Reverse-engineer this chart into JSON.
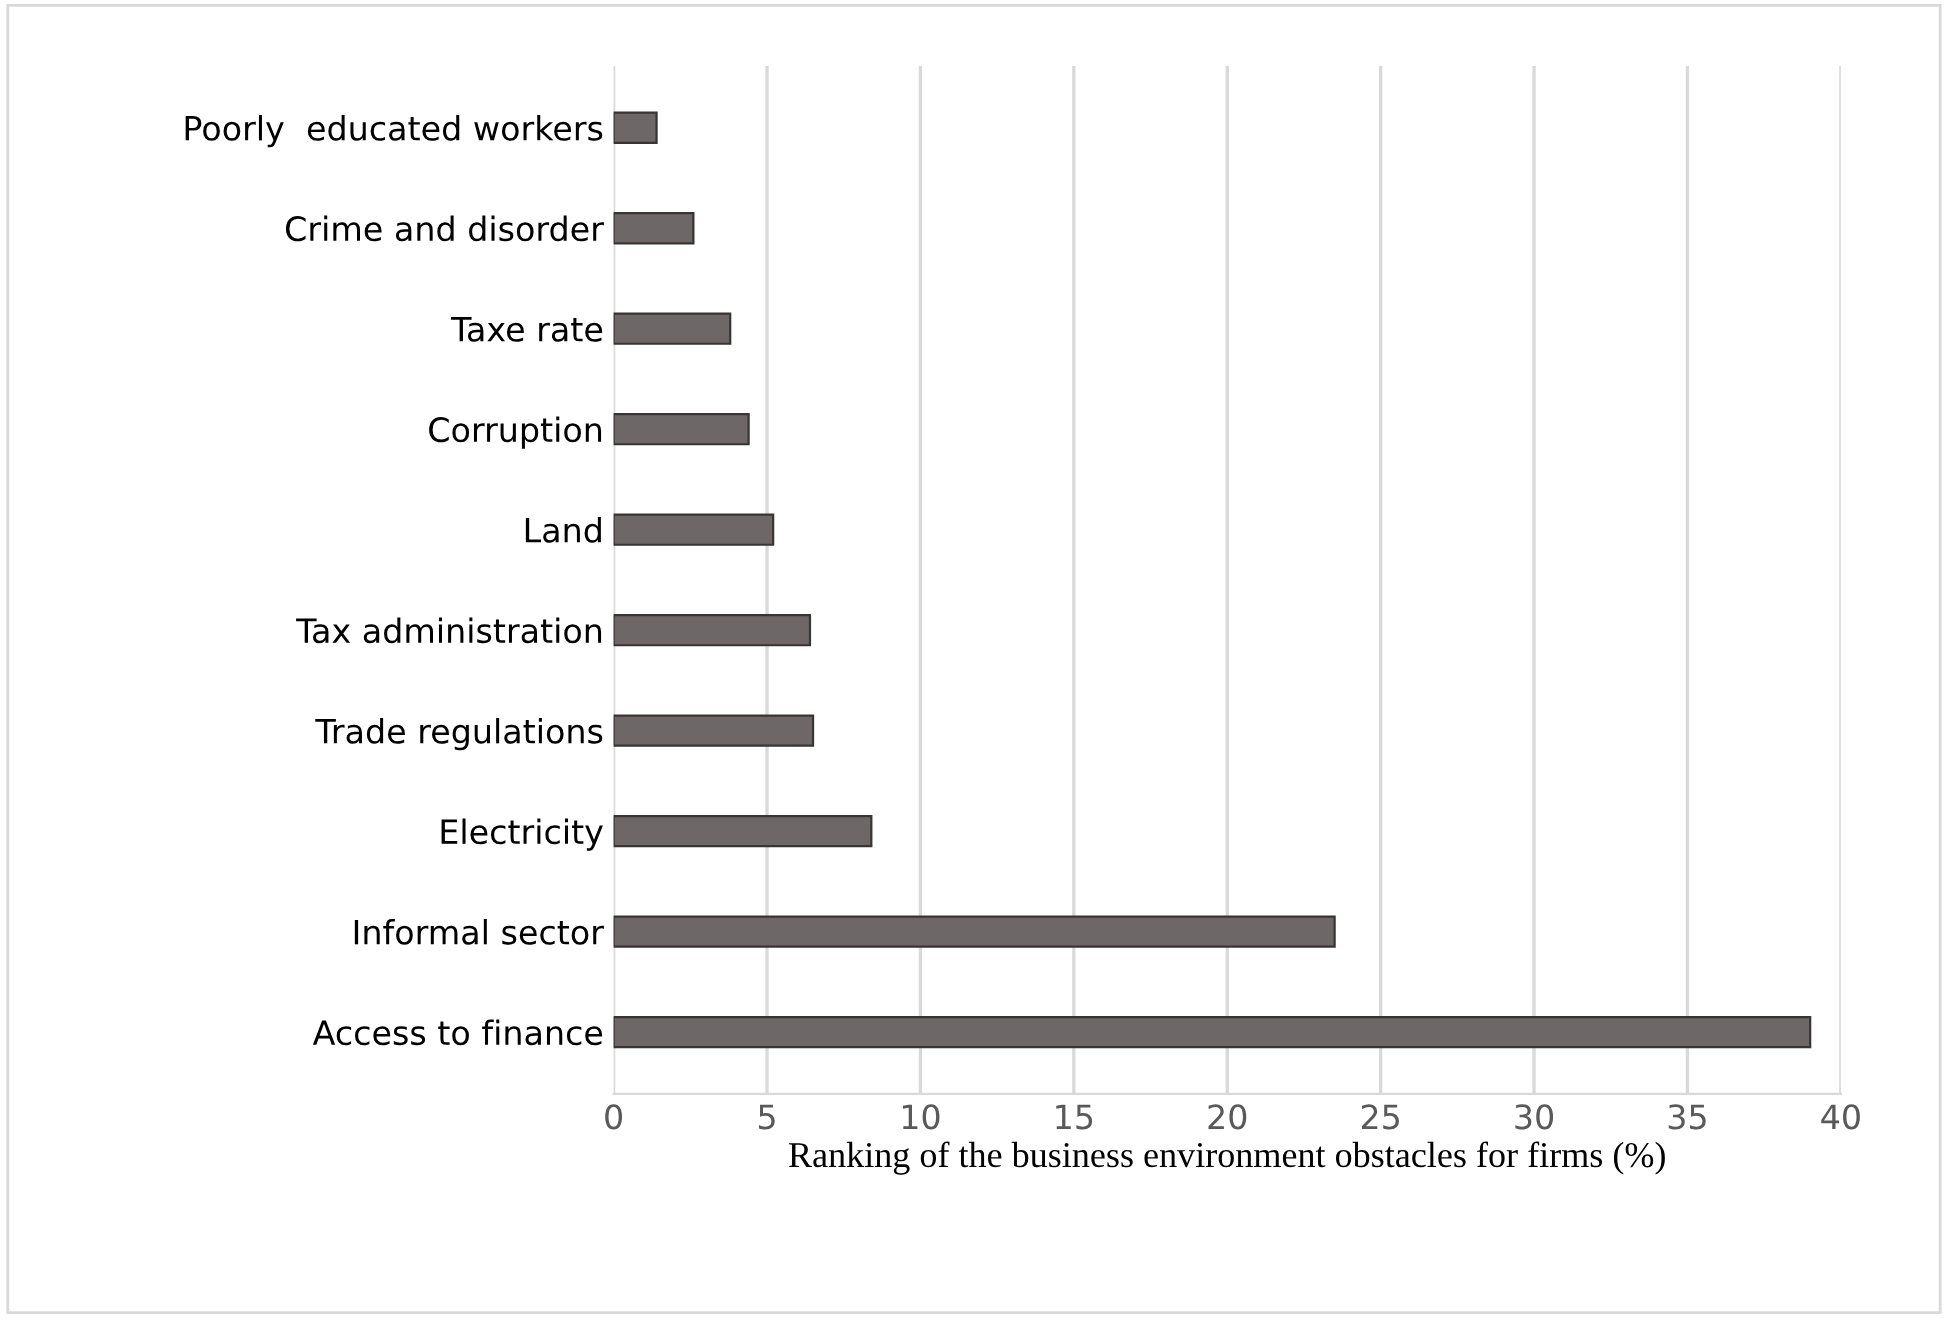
{
  "chart_data": {
    "type": "bar",
    "orientation": "horizontal",
    "xlabel": "Ranking of the business environment obstacles for firms (%)",
    "categories": [
      "Poorly  educated workers",
      "Crime and disorder",
      "Taxe rate",
      "Corruption",
      "Land",
      "Tax administration",
      "Trade regulations",
      "Electricity",
      "Informal sector",
      "Access to finance"
    ],
    "values": [
      1.4,
      2.6,
      3.8,
      4.4,
      5.2,
      6.4,
      6.5,
      8.4,
      23.5,
      39.0
    ],
    "color": "#6e6767",
    "xlim": [
      0,
      40
    ],
    "xticks": [
      0,
      5,
      10,
      15,
      20,
      25,
      30,
      35,
      40
    ],
    "grid": "x"
  }
}
